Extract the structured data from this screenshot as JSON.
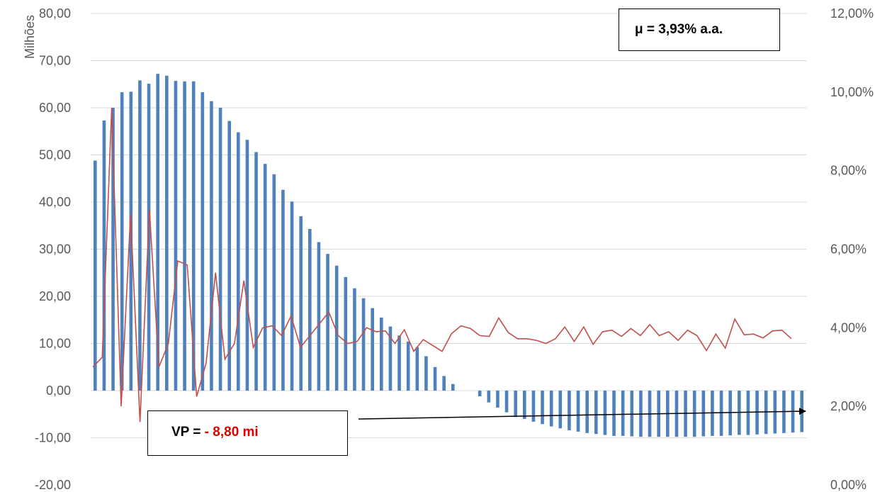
{
  "chart_data": {
    "type": "bar",
    "ylabel": "Milhões",
    "ylim": [
      -20,
      80
    ],
    "y2lim": [
      0,
      12
    ],
    "y_ticks": [
      "80,00",
      "70,00",
      "60,00",
      "50,00",
      "40,00",
      "30,00",
      "20,00",
      "10,00",
      "0,00",
      "-10,00",
      "-20,00"
    ],
    "y2_ticks": [
      "12,00%",
      "10,00%",
      "8,00%",
      "6,00%",
      "4,00%",
      "2,00%",
      "0,00%"
    ],
    "grid": true,
    "colors": {
      "bars": "#4f81bd",
      "line": "#c0504d",
      "grid": "#d9d9d9"
    },
    "series": [
      {
        "axis": "left",
        "type": "bar",
        "values": [
          48.8,
          57.3,
          60.0,
          63.3,
          63.4,
          65.8,
          65.1,
          67.2,
          66.8,
          65.7,
          65.6,
          65.6,
          63.3,
          61.4,
          60.0,
          57.2,
          54.8,
          53.2,
          50.6,
          48.1,
          45.9,
          42.6,
          40.1,
          37.0,
          34.3,
          31.5,
          29.0,
          26.5,
          24.1,
          21.7,
          19.6,
          17.5,
          15.5,
          13.6,
          11.7,
          10.4,
          9.2,
          7.3,
          5.0,
          3.1,
          1.4,
          0,
          0,
          -1.2,
          -2.5,
          -3.6,
          -4.6,
          -5.6,
          -6.0,
          -6.6,
          -7.1,
          -7.6,
          -8.0,
          -8.4,
          -8.7,
          -9.0,
          -9.2,
          -9.4,
          -9.6,
          -9.6,
          -9.7,
          -9.8,
          -9.8,
          -9.8,
          -9.8,
          -9.8,
          -9.8,
          -9.8,
          -9.7,
          -9.6,
          -9.6,
          -9.5,
          -9.4,
          -9.4,
          -9.3,
          -9.2,
          -9.1,
          -9.0,
          -8.9,
          -8.8
        ]
      },
      {
        "axis": "right",
        "type": "line",
        "values": [
          3.0,
          3.25,
          9.6,
          2.0,
          6.9,
          1.6,
          7.0,
          3.0,
          3.6,
          5.7,
          5.6,
          2.25,
          3.1,
          5.4,
          3.2,
          3.6,
          5.2,
          3.5,
          4.0,
          4.05,
          3.8,
          4.3,
          3.5,
          3.8,
          4.1,
          4.4,
          3.8,
          3.6,
          3.65,
          4.0,
          3.9,
          3.92,
          3.6,
          3.95,
          3.4,
          3.7,
          3.55,
          3.4,
          3.85,
          4.05,
          3.98,
          3.8,
          3.78,
          4.25,
          3.88,
          3.72,
          3.72,
          3.68,
          3.6,
          3.72,
          4.02,
          3.65,
          4.02,
          3.58,
          3.9,
          3.94,
          3.78,
          3.98,
          3.8,
          4.08,
          3.8,
          3.9,
          3.68,
          3.94,
          3.8,
          3.42,
          3.84,
          3.48,
          4.22,
          3.82,
          3.84,
          3.74,
          3.92,
          3.94,
          3.72
        ]
      }
    ],
    "annotations": {
      "mu_label": "μ = 3,93% a.a.",
      "vp_prefix": "VP =",
      "vp_value": "- 8,80 mi"
    }
  }
}
